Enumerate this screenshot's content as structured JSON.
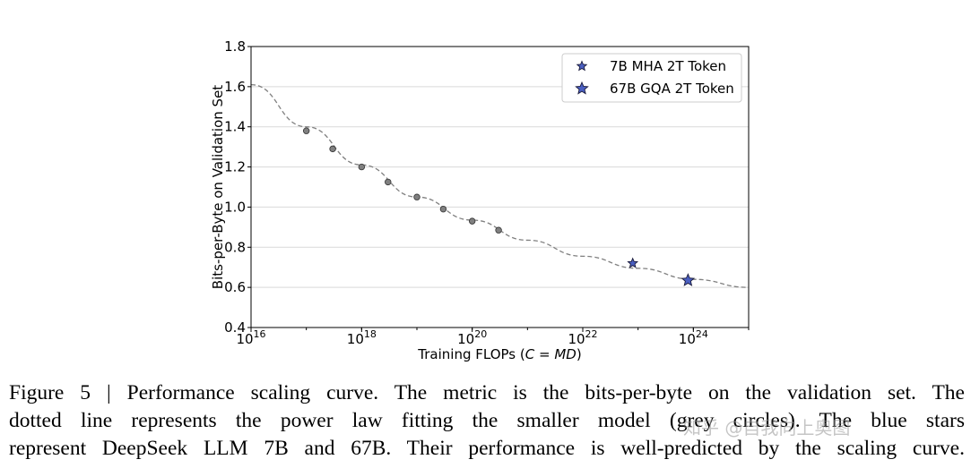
{
  "chart_data": {
    "type": "scatter",
    "xlabel": "Training FLOPs (C = MD)",
    "ylabel": "Bits-per-Byte on Validation Set",
    "x_scale": "log",
    "xlim": [
      1e+16,
      1e+25
    ],
    "ylim": [
      0.4,
      1.8
    ],
    "x_ticks": [
      {
        "base": "10",
        "exp": "16"
      },
      {
        "base": "10",
        "exp": "18"
      },
      {
        "base": "10",
        "exp": "20"
      },
      {
        "base": "10",
        "exp": "22"
      },
      {
        "base": "10",
        "exp": "24"
      }
    ],
    "y_ticks": [
      "0.4",
      "0.6",
      "0.8",
      "1.0",
      "1.2",
      "1.4",
      "1.6",
      "1.8"
    ],
    "grid": "horizontal",
    "legend_position": "top-right",
    "fit_curve": {
      "style": "dashed",
      "color": "#808080",
      "x": [
        1e+16,
        1e+17,
        1e+18,
        1e+19,
        1e+20,
        1e+21,
        1e+22,
        1e+23,
        1e+24,
        1e+25
      ],
      "y": [
        1.61,
        1.4,
        1.21,
        1.05,
        0.935,
        0.835,
        0.755,
        0.695,
        0.64,
        0.6
      ]
    },
    "series": [
      {
        "marker": "circle",
        "color": "#808080",
        "x": [
          1e+17,
          3e+17,
          1e+18,
          3e+18,
          1e+19,
          3e+19,
          1e+20,
          3e+20
        ],
        "y": [
          1.38,
          1.29,
          1.2,
          1.125,
          1.05,
          0.99,
          0.93,
          0.885
        ]
      },
      {
        "name": "7B MHA 2T Token",
        "marker": "star-small",
        "color": "#4a5fc1",
        "x": [
          8e+22
        ],
        "y": [
          0.72
        ]
      },
      {
        "name": "67B GQA 2T Token",
        "marker": "star-large",
        "color": "#4a5fc1",
        "x": [
          8e+23
        ],
        "y": [
          0.635
        ]
      }
    ]
  },
  "caption": {
    "lines": [
      "Figure 5 | Performance scaling curve. The metric is the bits-per-byte on the validation set. The",
      "dotted line represents the power law fitting the smaller model (grey circles). The blue stars",
      "represent DeepSeek LLM 7B and 67B. Their performance is well-predicted by the scaling curve."
    ]
  },
  "watermark": "知乎 @自我向上奥图"
}
